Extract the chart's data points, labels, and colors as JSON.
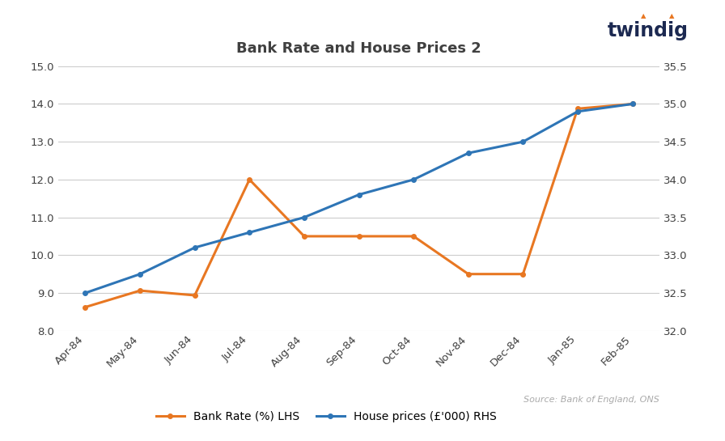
{
  "title": "Bank Rate and House Prices 2",
  "categories": [
    "Apr-84",
    "May-84",
    "Jun-84",
    "Jul-84",
    "Aug-84",
    "Sep-84",
    "Oct-84",
    "Nov-84",
    "Dec-84",
    "Jan-85",
    "Feb-85"
  ],
  "bank_rate": [
    8.625,
    9.0625,
    8.9375,
    12.0,
    10.5,
    10.5,
    10.5,
    9.5,
    9.5,
    13.875,
    14.0
  ],
  "house_prices": [
    32.5,
    32.75,
    33.1,
    33.3,
    33.5,
    33.8,
    34.0,
    34.35,
    34.5,
    34.9,
    35.0
  ],
  "bank_rate_color": "#E87722",
  "house_price_color": "#2E75B6",
  "lhs_ylim": [
    8.0,
    15.0
  ],
  "rhs_ylim": [
    32.0,
    35.5
  ],
  "lhs_yticks": [
    8.0,
    9.0,
    10.0,
    11.0,
    12.0,
    13.0,
    14.0,
    15.0
  ],
  "rhs_yticks": [
    32.0,
    32.5,
    33.0,
    33.5,
    34.0,
    34.5,
    35.0,
    35.5
  ],
  "legend_bank_rate": "Bank Rate (%) LHS",
  "legend_house_prices": "House prices (£'000) RHS",
  "source_text": "Source: Bank of England, ONS",
  "twindig_text": "twindig",
  "background_color": "#FFFFFF",
  "grid_color": "#CCCCCC",
  "line_width": 2.2,
  "title_color": "#404040",
  "tick_color": "#404040"
}
